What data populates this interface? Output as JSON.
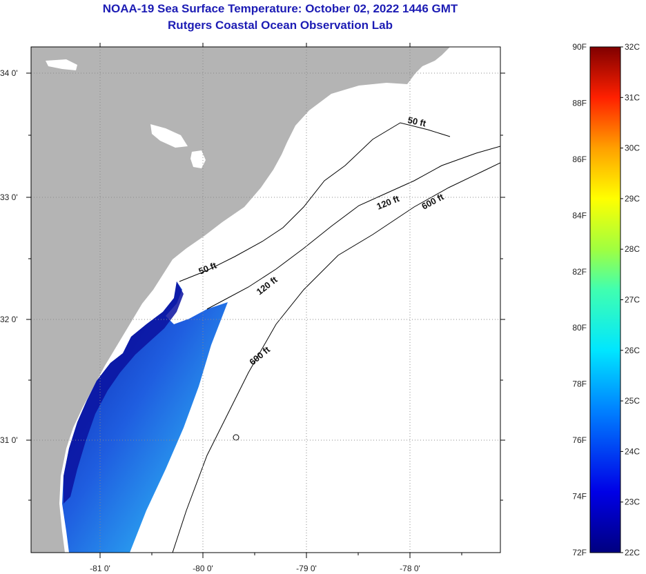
{
  "title": {
    "line1": "NOAA-19 Sea Surface Temperature:  October 02, 2022 1446 GMT",
    "line2": "Rutgers Coastal Ocean Observation Lab"
  },
  "map": {
    "lat_labels": [
      "34 0'",
      "33 0'",
      "32 0'",
      "31 0'"
    ],
    "lon_labels": [
      "-81 0'",
      "-80 0'",
      "-79 0'",
      "-78 0'"
    ],
    "contour_labels": [
      "50 ft",
      "120 ft",
      "600 ft",
      "50 ft",
      "120 ft",
      "600 ft"
    ]
  },
  "colorbar": {
    "fahrenheit": [
      "90F",
      "88F",
      "86F",
      "84F",
      "82F",
      "80F",
      "78F",
      "76F",
      "74F",
      "72F"
    ],
    "celsius": [
      "32C",
      "31C",
      "30C",
      "29C",
      "28C",
      "27C",
      "26C",
      "25C",
      "24C",
      "23C",
      "22C"
    ]
  },
  "colors": {
    "title": "#1c1cb4",
    "land": "#b4b4b4",
    "sst_low": "#0000a0",
    "sst_high": "#a0141e"
  }
}
